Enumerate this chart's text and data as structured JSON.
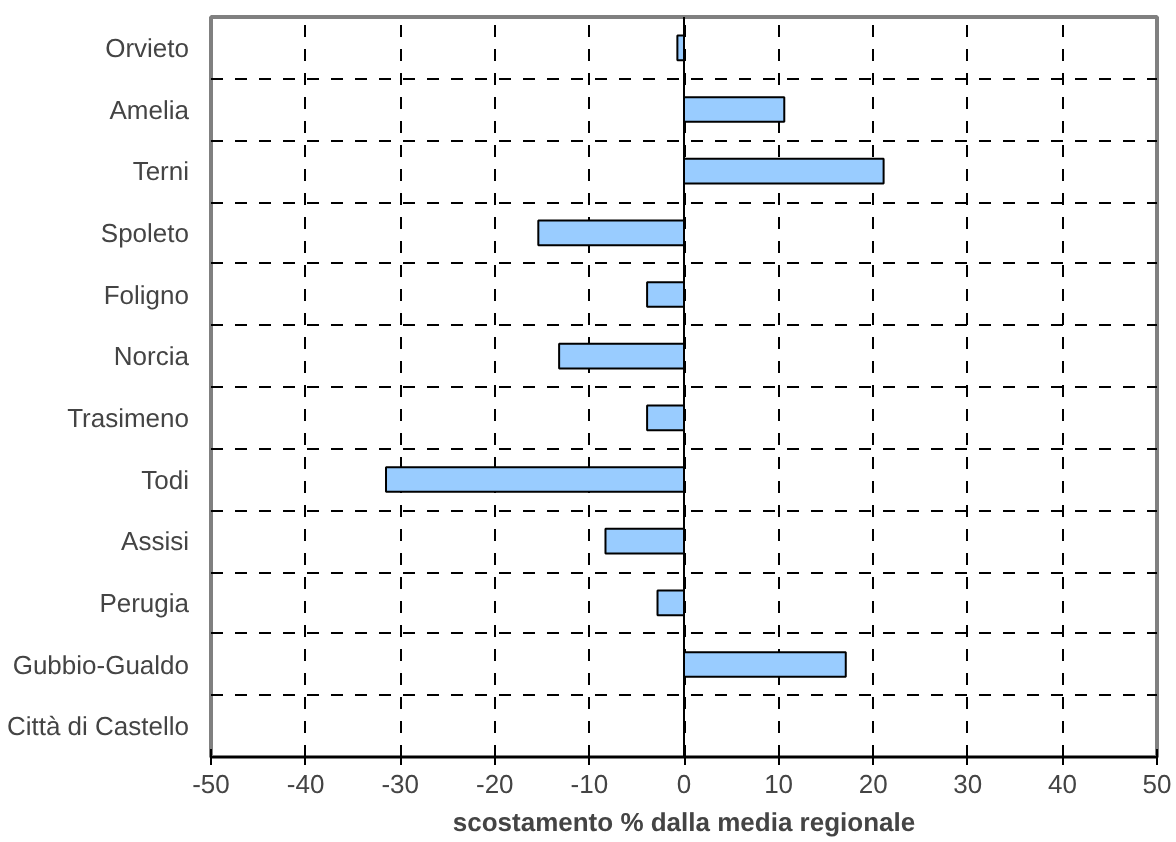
{
  "chart_data": {
    "type": "bar",
    "orientation": "horizontal",
    "xlabel": "scostamento % dalla media regionale",
    "categories": [
      "Orvieto",
      "Amelia",
      "Terni",
      "Spoleto",
      "Foligno",
      "Norcia",
      "Trasimeno",
      "Todi",
      "Assisi",
      "Perugia",
      "Gubbio-Gualdo",
      "Città di Castello"
    ],
    "values": [
      -0.7,
      10.6,
      21.1,
      -15.4,
      -3.9,
      -13.2,
      -3.9,
      -31.5,
      -8.3,
      -2.8,
      17.1,
      null
    ],
    "color": "#99ccff",
    "xlim": [
      -50,
      50
    ],
    "xticks": [
      -50,
      -40,
      -30,
      -20,
      -10,
      0,
      10,
      20,
      30,
      40,
      50
    ],
    "grid": true
  }
}
